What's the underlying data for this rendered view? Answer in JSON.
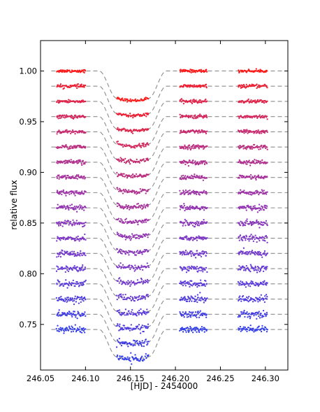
{
  "chart_data": {
    "type": "scatter",
    "title": "",
    "xlabel": "[HJD] - 2454000",
    "ylabel": "relative flux",
    "xlim": [
      246.05,
      246.325
    ],
    "ylim": [
      0.705,
      1.03
    ],
    "xticks": [
      246.05,
      246.1,
      246.15,
      246.2,
      246.25,
      246.3
    ],
    "xtick_labels": [
      "246.05",
      "246.10",
      "246.15",
      "246.20",
      "246.25",
      "246.30"
    ],
    "yticks": [
      0.75,
      0.8,
      0.85,
      0.9,
      0.95,
      1.0
    ],
    "ytick_labels": [
      "0.75",
      "0.80",
      "0.85",
      "0.90",
      "0.95",
      "1.00"
    ],
    "grid": false,
    "legend": "none",
    "transit": {
      "depth": 0.027,
      "ingress_start": 246.115,
      "ingress_end": 246.135,
      "egress_start": 246.17,
      "egress_end": 246.19
    },
    "data_windows": [
      [
        246.068,
        246.1
      ],
      [
        246.135,
        246.17
      ],
      [
        246.205,
        246.235
      ],
      [
        246.27,
        246.302
      ]
    ],
    "series": [
      {
        "baseline": 1.0,
        "color": "#ff1a1a"
      },
      {
        "baseline": 0.985,
        "color": "#ee1f33"
      },
      {
        "baseline": 0.97,
        "color": "#e0244a"
      },
      {
        "baseline": 0.955,
        "color": "#d4285e"
      },
      {
        "baseline": 0.94,
        "color": "#c82c70"
      },
      {
        "baseline": 0.925,
        "color": "#bd2e80"
      },
      {
        "baseline": 0.91,
        "color": "#b2308f"
      },
      {
        "baseline": 0.895,
        "color": "#a8329c"
      },
      {
        "baseline": 0.88,
        "color": "#9e34a8"
      },
      {
        "baseline": 0.865,
        "color": "#9335b3"
      },
      {
        "baseline": 0.85,
        "color": "#8837bd"
      },
      {
        "baseline": 0.835,
        "color": "#7d38c6"
      },
      {
        "baseline": 0.82,
        "color": "#7239ce"
      },
      {
        "baseline": 0.805,
        "color": "#673ad5"
      },
      {
        "baseline": 0.79,
        "color": "#5b3bdb"
      },
      {
        "baseline": 0.775,
        "color": "#4f3ce1"
      },
      {
        "baseline": 0.76,
        "color": "#413de6"
      },
      {
        "baseline": 0.745,
        "color": "#333eea"
      }
    ],
    "model_line_color": "#8c8c8c",
    "frame_color": "#000000"
  }
}
